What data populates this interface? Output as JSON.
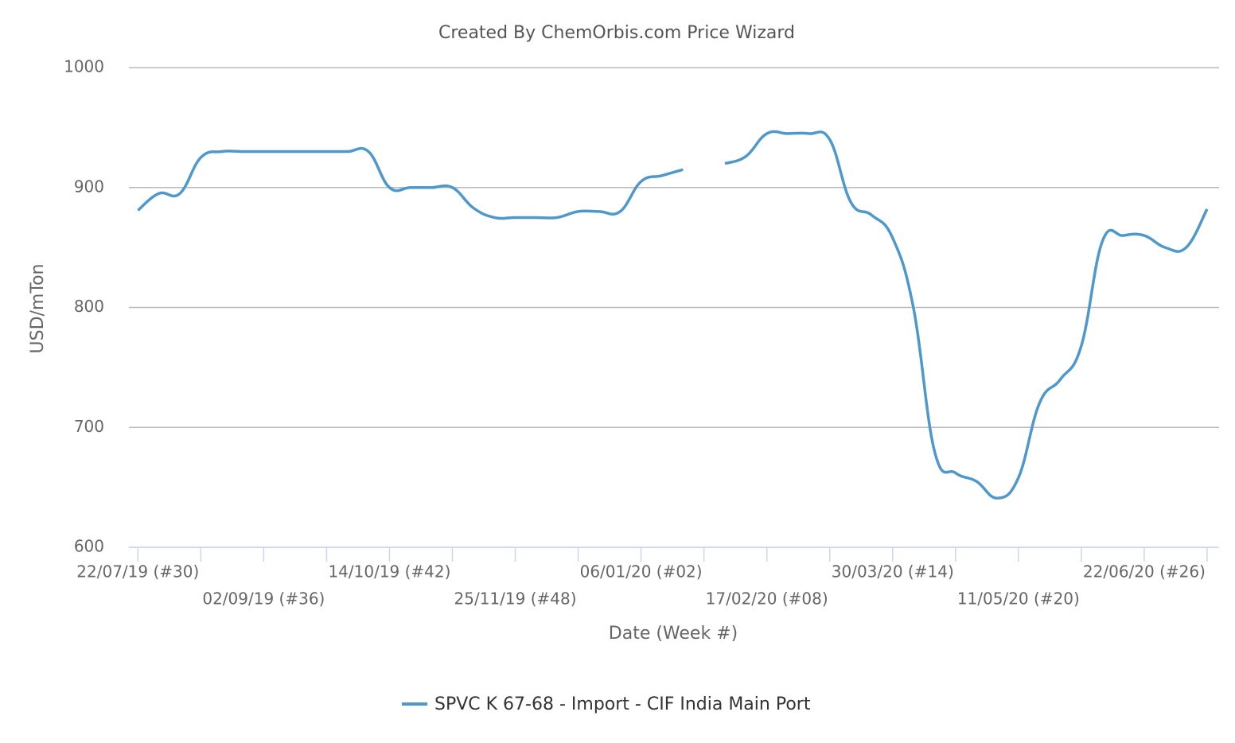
{
  "chart_data": {
    "type": "line",
    "title": "Created By ChemOrbis.com Price Wizard",
    "x_label": "Date (Week #)",
    "y_label": "USD/mTon",
    "x": [
      "2019-07-22",
      "2019-07-29",
      "2019-08-05",
      "2019-08-12",
      "2019-08-19",
      "2019-08-26",
      "2019-09-02",
      "2019-09-09",
      "2019-09-16",
      "2019-09-23",
      "2019-09-30",
      "2019-10-07",
      "2019-10-14",
      "2019-10-21",
      "2019-10-28",
      "2019-11-04",
      "2019-11-11",
      "2019-11-18",
      "2019-11-25",
      "2019-12-02",
      "2019-12-09",
      "2019-12-16",
      "2019-12-23",
      "2019-12-30",
      "2020-01-06",
      "2020-01-13",
      "2020-01-20",
      "2020-01-27",
      "2020-02-03",
      "2020-02-10",
      "2020-02-17",
      "2020-02-24",
      "2020-03-02",
      "2020-03-09",
      "2020-03-16",
      "2020-03-23",
      "2020-03-30",
      "2020-04-06",
      "2020-04-13",
      "2020-04-20",
      "2020-04-27",
      "2020-05-04",
      "2020-05-11",
      "2020-05-18",
      "2020-05-25",
      "2020-06-01",
      "2020-06-08",
      "2020-06-15",
      "2020-06-22",
      "2020-06-29",
      "2020-07-06",
      "2020-07-13"
    ],
    "series": [
      {
        "name": "SPVC K 67-68 - Import - CIF India Main Port",
        "color": "#4f98cb",
        "values": [
          881,
          895,
          895,
          925,
          930,
          930,
          930,
          930,
          930,
          930,
          930,
          930,
          900,
          900,
          900,
          900,
          883,
          875,
          875,
          875,
          875,
          880,
          880,
          880,
          905,
          910,
          915,
          null,
          920,
          926,
          945,
          945,
          945,
          940,
          888,
          877,
          858,
          799,
          680,
          662,
          655,
          641,
          658,
          720,
          740,
          768,
          855,
          860,
          860,
          850,
          850,
          882
        ]
      }
    ],
    "xlim": [
      "2019-07-19",
      "2020-07-17"
    ],
    "xticks": [
      {
        "value": "2019-07-22",
        "label": "22/07/19 (#30)"
      },
      "2019-08-12",
      {
        "value": "2019-09-02",
        "label": "02/09/19 (#36)"
      },
      "2019-09-23",
      {
        "value": "2019-10-14",
        "label": "14/10/19 (#42)"
      },
      "2019-11-04",
      {
        "value": "2019-11-25",
        "label": "25/11/19 (#48)"
      },
      "2019-12-16",
      {
        "value": "2020-01-06",
        "label": "06/01/20 (#02)"
      },
      "2020-01-27",
      {
        "value": "2020-02-17",
        "label": "17/02/20 (#08)"
      },
      "2020-03-09",
      {
        "value": "2020-03-30",
        "label": "30/03/20 (#14)"
      },
      "2020-04-20",
      {
        "value": "2020-05-11",
        "label": "11/05/20 (#20)"
      },
      "2020-06-01",
      {
        "value": "2020-06-22",
        "label": "22/06/20 (#26)"
      },
      "2020-07-13"
    ],
    "ylim": [
      600,
      1000
    ],
    "yticks": [
      600,
      700,
      800,
      900,
      1000
    ],
    "grid": true,
    "legend": "bottom"
  }
}
